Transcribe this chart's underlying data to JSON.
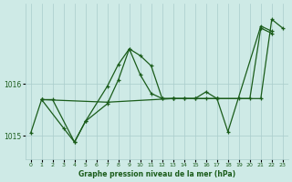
{
  "title": "Graphe pression niveau de la mer (hPa)",
  "bg_color": "#ceeae6",
  "grid_color": "#aacccc",
  "line_color": "#1a5c1a",
  "xlim": [
    -0.5,
    23.5
  ],
  "ylim": [
    1014.55,
    1017.55
  ],
  "yticks": [
    1015,
    1016
  ],
  "xtick_labels": [
    "0",
    "1",
    "2",
    "3",
    "4",
    "5",
    "6",
    "7",
    "8",
    "9",
    "10",
    "11",
    "12",
    "13",
    "14",
    "15",
    "16",
    "17",
    "18",
    "19",
    "20",
    "21",
    "22",
    "23"
  ],
  "series1_x": [
    0,
    1,
    3,
    4,
    5,
    7,
    8,
    9,
    10,
    11,
    12,
    13,
    14,
    15,
    16,
    17,
    18,
    21,
    22
  ],
  "series1_y": [
    1015.05,
    1015.7,
    1015.15,
    1014.88,
    1015.28,
    1015.62,
    1016.08,
    1016.68,
    1016.18,
    1015.82,
    1015.72,
    1015.72,
    1015.72,
    1015.72,
    1015.85,
    1015.72,
    1015.08,
    1017.12,
    1017.02
  ],
  "series2_x": [
    1,
    2,
    4,
    5,
    7,
    8,
    9,
    10,
    11,
    12,
    13,
    14,
    15,
    16,
    17,
    19,
    20,
    21,
    22
  ],
  "series2_y": [
    1015.7,
    1015.7,
    1014.88,
    1015.28,
    1015.96,
    1016.38,
    1016.68,
    1016.55,
    1016.35,
    1015.72,
    1015.72,
    1015.72,
    1015.72,
    1015.72,
    1015.72,
    1015.72,
    1015.72,
    1017.08,
    1016.98
  ],
  "series3_x": [
    1,
    7,
    13,
    17,
    21,
    22,
    23
  ],
  "series3_y": [
    1015.7,
    1015.65,
    1015.72,
    1015.72,
    1015.72,
    1017.25,
    1017.08
  ],
  "figsize": [
    3.2,
    2.0
  ],
  "dpi": 100
}
